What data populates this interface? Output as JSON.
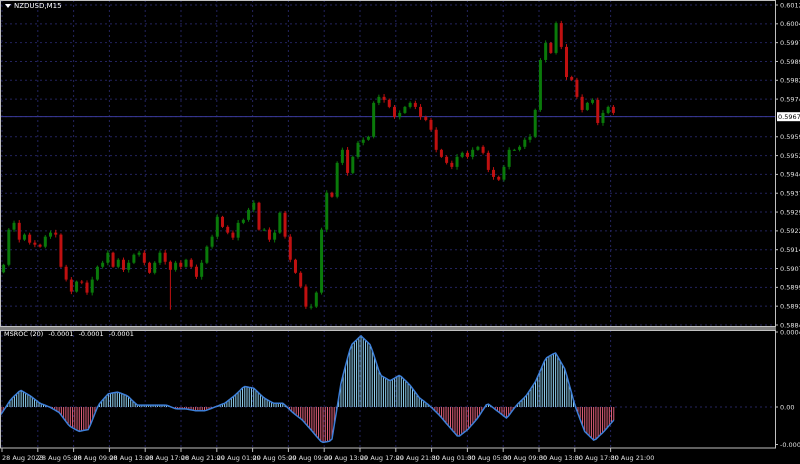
{
  "window": {
    "symbol_title": "NZDUSD,M15"
  },
  "indicator": {
    "name": "MSROC (20)",
    "values_text": [
      "-0.0001",
      "-0.0001",
      "-0.0001"
    ]
  },
  "current_price": "0.59675",
  "colors": {
    "background": "#000000",
    "grid": "#23235e",
    "bull": "#0a7a0a",
    "bear": "#c01010",
    "hist_pos": "#8fd0f0",
    "hist_neg": "#e0607a",
    "line": "#3d7fd8",
    "axis": "#c0c0c0"
  },
  "chart_data": [
    {
      "type": "candlestick",
      "title": "NZDUSD,M15",
      "ylim": [
        0.58845,
        0.6012
      ],
      "grid": true,
      "y_ticks": [
        "0.60120",
        "0.60045",
        "0.59970",
        "0.59895",
        "0.59820",
        "0.59745",
        "0.59675",
        "0.59595",
        "0.59520",
        "0.59445",
        "0.59370",
        "0.59295",
        "0.59220",
        "0.59145",
        "0.59070",
        "0.58995",
        "0.58920",
        "0.58845"
      ],
      "x_ticks": [
        "28 Aug 2023",
        "28 Aug 05:00",
        "28 Aug 09:00",
        "28 Aug 13:00",
        "28 Aug 17:00",
        "28 Aug 21:00",
        "29 Aug 01:00",
        "29 Aug 05:00",
        "29 Aug 09:00",
        "29 Aug 13:00",
        "29 Aug 17:00",
        "29 Aug 21:00",
        "30 Aug 01:00",
        "30 Aug 05:00",
        "30 Aug 09:00",
        "30 Aug 13:00",
        "30 Aug 17:00",
        "30 Aug 21:00"
      ],
      "closes": [
        0.59085,
        0.59225,
        0.59252,
        0.59185,
        0.59205,
        0.59173,
        0.59165,
        0.59157,
        0.59197,
        0.59213,
        0.59205,
        0.59077,
        0.59026,
        0.58978,
        0.59018,
        0.59014,
        0.58974,
        0.59026,
        0.59077,
        0.59093,
        0.59133,
        0.59077,
        0.59105,
        0.59065,
        0.59093,
        0.59125,
        0.59133,
        0.59093,
        0.59053,
        0.59093,
        0.59133,
        0.59097,
        0.59065,
        0.59093,
        0.59077,
        0.59105,
        0.59077,
        0.59037,
        0.59093,
        0.59157,
        0.59197,
        0.59276,
        0.59236,
        0.59213,
        0.59193,
        0.59252,
        0.59264,
        0.59304,
        0.59332,
        0.59225,
        0.59225,
        0.59185,
        0.59213,
        0.59292,
        0.59197,
        0.59105,
        0.59053,
        0.58998,
        0.58918,
        0.58918,
        0.58974,
        0.59225,
        0.59372,
        0.59356,
        0.59491,
        0.59543,
        0.59451,
        0.59515,
        0.59571,
        0.59583,
        0.59595,
        0.5973,
        0.59754,
        0.59742,
        0.59714,
        0.59674,
        0.5969,
        0.59714,
        0.5973,
        0.59714,
        0.59674,
        0.59662,
        0.59623,
        0.59543,
        0.59515,
        0.59491,
        0.59475,
        0.59515,
        0.59531,
        0.59515,
        0.59543,
        0.59555,
        0.59531,
        0.59463,
        0.59435,
        0.59424,
        0.59475,
        0.59543,
        0.59543,
        0.59555,
        0.59583,
        0.59595,
        0.59702,
        0.59901,
        0.59969,
        0.59929,
        0.60048,
        0.59953,
        0.59833,
        0.59822,
        0.59754,
        0.59702,
        0.5973,
        0.59742,
        0.5965,
        0.5969,
        0.59714,
        0.5969
      ]
    },
    {
      "type": "bar",
      "title": "MSROC (20)",
      "ylim": [
        -0.0002,
        0.0004
      ],
      "y_ticks": [
        "0.0004",
        "0.00",
        "-0.0002"
      ],
      "values": [
        -4e-05,
        4e-05,
        9e-05,
        6e-05,
        2e-05,
        0,
        -3e-05,
        -0.0001,
        -0.00013,
        -0.00012,
        1e-05,
        7e-05,
        8e-05,
        6e-05,
        1e-05,
        1e-05,
        1e-05,
        1e-05,
        -1e-05,
        -1e-05,
        -2e-05,
        -2e-05,
        0,
        2e-05,
        6e-05,
        0.00011,
        0.0001,
        5e-05,
        2e-05,
        2e-05,
        -3e-05,
        -7e-05,
        -0.00013,
        -0.00019,
        -0.00018,
        0.00014,
        0.00033,
        0.00038,
        0.00033,
        0.00017,
        0.00014,
        0.00017,
        0.00012,
        5e-05,
        1e-05,
        -4e-05,
        -0.0001,
        -0.00016,
        -0.00012,
        -6e-05,
        2e-05,
        -2e-05,
        -6e-05,
        1e-05,
        6e-05,
        0.00014,
        0.00026,
        0.00029,
        0.0002,
        1e-05,
        -0.00013,
        -0.00018,
        -0.00013,
        -7e-05
      ]
    }
  ]
}
